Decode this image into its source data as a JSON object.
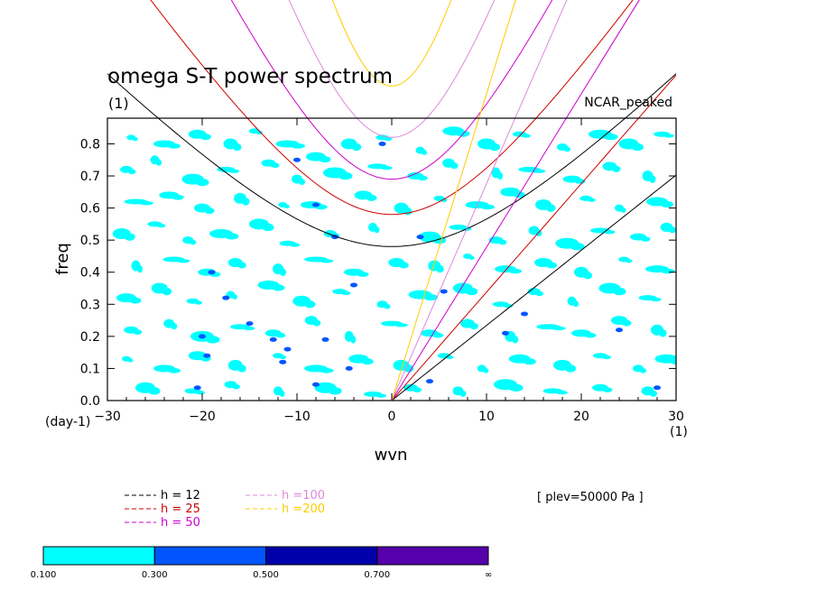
{
  "chart_data": {
    "type": "heatmap",
    "title": "omega S-T power spectrum",
    "title_units": "(1)",
    "dataset_label": "NCAR_peaked",
    "xlabel": "wvn",
    "ylabel": "freq",
    "x_units": "(1)",
    "y_units": "(day-1)",
    "xlim": [
      -30,
      30
    ],
    "ylim": [
      0,
      0.88
    ],
    "x_ticks": [
      -30,
      -20,
      -10,
      0,
      10,
      20,
      30
    ],
    "y_ticks": [
      0.0,
      0.1,
      0.2,
      0.3,
      0.4,
      0.5,
      0.6,
      0.7,
      0.8
    ],
    "annotation": "[ plev=50000 Pa ]",
    "dispersion_curves": [
      {
        "name": "h = 12",
        "color": "#000000",
        "label_color": "#000000",
        "n1_min_freq": 0.48
      },
      {
        "name": "h = 25",
        "color": "#cc0000",
        "label_color": "#cc0000",
        "n1_min_freq": 0.58
      },
      {
        "name": "h = 50",
        "color": "#cc00cc",
        "label_color": "#cc00cc",
        "n1_min_freq": 0.69
      },
      {
        "name": "h =100",
        "color": "#dd88dd",
        "label_color": "#dd88dd",
        "n1_min_freq": 0.82
      },
      {
        "name": "h =200",
        "color": "#ffcc00",
        "label_color": "#ffcc00",
        "n1_min_freq": 0.98
      }
    ],
    "colorbar": {
      "levels": [
        "0.100",
        "0.300",
        "0.500",
        "0.700",
        "∞"
      ],
      "colors": [
        "#00ffff",
        "#0055ff",
        "#0000aa",
        "#5500aa"
      ]
    },
    "blobs_cyan": [
      [
        -27.5,
        0.82
      ],
      [
        -24,
        0.8
      ],
      [
        -20.5,
        0.83
      ],
      [
        -17,
        0.8
      ],
      [
        -14.5,
        0.84
      ],
      [
        -11,
        0.8
      ],
      [
        -8,
        0.76
      ],
      [
        -4.5,
        0.8
      ],
      [
        -1,
        0.82
      ],
      [
        3,
        0.78
      ],
      [
        6.5,
        0.84
      ],
      [
        10,
        0.8
      ],
      [
        13.5,
        0.83
      ],
      [
        18,
        0.79
      ],
      [
        22,
        0.83
      ],
      [
        25,
        0.8
      ],
      [
        28.5,
        0.83
      ],
      [
        -28,
        0.72
      ],
      [
        -25,
        0.75
      ],
      [
        -21,
        0.69
      ],
      [
        -17.5,
        0.72
      ],
      [
        -13,
        0.74
      ],
      [
        -10,
        0.69
      ],
      [
        -6,
        0.71
      ],
      [
        -1.5,
        0.73
      ],
      [
        2.5,
        0.7
      ],
      [
        6,
        0.74
      ],
      [
        11,
        0.71
      ],
      [
        14.5,
        0.72
      ],
      [
        19,
        0.69
      ],
      [
        23,
        0.73
      ],
      [
        27,
        0.7
      ],
      [
        -27,
        0.62
      ],
      [
        -23.5,
        0.64
      ],
      [
        -20,
        0.6
      ],
      [
        -16,
        0.63
      ],
      [
        -11.5,
        0.61
      ],
      [
        -8.5,
        0.61
      ],
      [
        -3,
        0.64
      ],
      [
        1,
        0.6
      ],
      [
        5,
        0.63
      ],
      [
        9,
        0.61
      ],
      [
        12.5,
        0.65
      ],
      [
        16,
        0.61
      ],
      [
        20.5,
        0.63
      ],
      [
        24,
        0.6
      ],
      [
        28,
        0.62
      ],
      [
        -28.5,
        0.52
      ],
      [
        -25,
        0.55
      ],
      [
        -21.5,
        0.5
      ],
      [
        -18,
        0.52
      ],
      [
        -14,
        0.55
      ],
      [
        -11,
        0.49
      ],
      [
        -6.5,
        0.52
      ],
      [
        -2,
        0.54
      ],
      [
        4,
        0.51
      ],
      [
        7,
        0.54
      ],
      [
        11,
        0.5
      ],
      [
        15,
        0.53
      ],
      [
        18.5,
        0.49
      ],
      [
        22,
        0.53
      ],
      [
        26,
        0.51
      ],
      [
        29,
        0.54
      ],
      [
        -27,
        0.42
      ],
      [
        -23,
        0.44
      ],
      [
        -19.5,
        0.4
      ],
      [
        -16.5,
        0.43
      ],
      [
        -12,
        0.41
      ],
      [
        -8,
        0.44
      ],
      [
        -4,
        0.4
      ],
      [
        0.5,
        0.43
      ],
      [
        4.5,
        0.42
      ],
      [
        8,
        0.45
      ],
      [
        12,
        0.41
      ],
      [
        16,
        0.43
      ],
      [
        20,
        0.4
      ],
      [
        24.5,
        0.44
      ],
      [
        28,
        0.41
      ],
      [
        -28,
        0.32
      ],
      [
        -24.5,
        0.35
      ],
      [
        -21,
        0.31
      ],
      [
        -17,
        0.33
      ],
      [
        -13,
        0.36
      ],
      [
        -9.5,
        0.31
      ],
      [
        -5.5,
        0.34
      ],
      [
        -1,
        0.3
      ],
      [
        3,
        0.33
      ],
      [
        7.5,
        0.35
      ],
      [
        11.5,
        0.3
      ],
      [
        15,
        0.34
      ],
      [
        19,
        0.31
      ],
      [
        23,
        0.35
      ],
      [
        27,
        0.32
      ],
      [
        -27.5,
        0.22
      ],
      [
        -23.5,
        0.24
      ],
      [
        -20,
        0.2
      ],
      [
        -16,
        0.23
      ],
      [
        -12.5,
        0.21
      ],
      [
        -8.5,
        0.25
      ],
      [
        -4.5,
        0.2
      ],
      [
        0,
        0.24
      ],
      [
        4,
        0.21
      ],
      [
        8,
        0.24
      ],
      [
        12.5,
        0.2
      ],
      [
        16.5,
        0.23
      ],
      [
        20,
        0.21
      ],
      [
        24,
        0.25
      ],
      [
        28,
        0.22
      ],
      [
        -28,
        0.13
      ],
      [
        -24,
        0.1
      ],
      [
        -20.5,
        0.14
      ],
      [
        -16.5,
        0.11
      ],
      [
        -12,
        0.14
      ],
      [
        -8,
        0.1
      ],
      [
        -3.5,
        0.13
      ],
      [
        1,
        0.11
      ],
      [
        5.5,
        0.14
      ],
      [
        9.5,
        0.1
      ],
      [
        13.5,
        0.13
      ],
      [
        18,
        0.11
      ],
      [
        22,
        0.14
      ],
      [
        26,
        0.1
      ],
      [
        29,
        0.13
      ],
      [
        -26,
        0.04
      ],
      [
        -21,
        0.03
      ],
      [
        -17,
        0.05
      ],
      [
        -12,
        0.03
      ],
      [
        -7,
        0.04
      ],
      [
        -2,
        0.02
      ],
      [
        2,
        0.04
      ],
      [
        7,
        0.03
      ],
      [
        12,
        0.05
      ],
      [
        17,
        0.03
      ],
      [
        22,
        0.04
      ],
      [
        27,
        0.03
      ]
    ],
    "blobs_blue": [
      [
        -10,
        0.75
      ],
      [
        -1,
        0.8
      ],
      [
        -8,
        0.61
      ],
      [
        -19,
        0.4
      ],
      [
        -17.5,
        0.32
      ],
      [
        -15,
        0.24
      ],
      [
        5.5,
        0.34
      ],
      [
        -4,
        0.36
      ],
      [
        -7,
        0.19
      ],
      [
        -20,
        0.2
      ],
      [
        -19.5,
        0.14
      ],
      [
        12,
        0.21
      ],
      [
        -4.5,
        0.1
      ],
      [
        -6,
        0.51
      ],
      [
        4,
        0.06
      ],
      [
        -11,
        0.16
      ],
      [
        -20.5,
        0.04
      ],
      [
        14,
        0.27
      ],
      [
        -11.5,
        0.12
      ],
      [
        -8,
        0.05
      ],
      [
        -12.5,
        0.19
      ],
      [
        28,
        0.04
      ],
      [
        24,
        0.22
      ],
      [
        3,
        0.51
      ]
    ]
  }
}
